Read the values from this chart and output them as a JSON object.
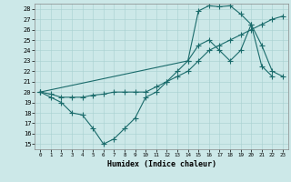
{
  "xlabel": "Humidex (Indice chaleur)",
  "background_color": "#cce8e8",
  "line_color": "#1a6b6b",
  "xlim": [
    -0.5,
    23.5
  ],
  "ylim": [
    14.5,
    28.5
  ],
  "yticks": [
    15,
    16,
    17,
    18,
    19,
    20,
    21,
    22,
    23,
    24,
    25,
    26,
    27,
    28
  ],
  "xticks": [
    0,
    1,
    2,
    3,
    4,
    5,
    6,
    7,
    8,
    9,
    10,
    11,
    12,
    13,
    14,
    15,
    16,
    17,
    18,
    19,
    20,
    21,
    22,
    23
  ],
  "line1_x": [
    0,
    1,
    2,
    3,
    4,
    5,
    6,
    7,
    8,
    9,
    10,
    11,
    12,
    13,
    14,
    15,
    16,
    17,
    18,
    19,
    20,
    21,
    22
  ],
  "line1_y": [
    20,
    19.5,
    19,
    18,
    17.8,
    16.5,
    15,
    15.5,
    16.5,
    17.5,
    19.5,
    20,
    21,
    22,
    23,
    24.5,
    25,
    24,
    23,
    24,
    26.5,
    22.5,
    21.5
  ],
  "line2_x": [
    0,
    1,
    2,
    3,
    4,
    5,
    6,
    7,
    8,
    9,
    10,
    11,
    12,
    13,
    14,
    15,
    16,
    17,
    18,
    19,
    20,
    21,
    22,
    23
  ],
  "line2_y": [
    20,
    19.8,
    19.5,
    19.5,
    19.5,
    19.7,
    19.8,
    20,
    20,
    20,
    20,
    20.5,
    21,
    21.5,
    22,
    23,
    24,
    24.5,
    25,
    25.5,
    26,
    26.5,
    27,
    27.3
  ],
  "line3_x": [
    0,
    14,
    15,
    16,
    17,
    18,
    19,
    20,
    21,
    22,
    23
  ],
  "line3_y": [
    20,
    23,
    27.8,
    28.3,
    28.2,
    28.3,
    27.5,
    26.5,
    24.5,
    22,
    21.5
  ]
}
